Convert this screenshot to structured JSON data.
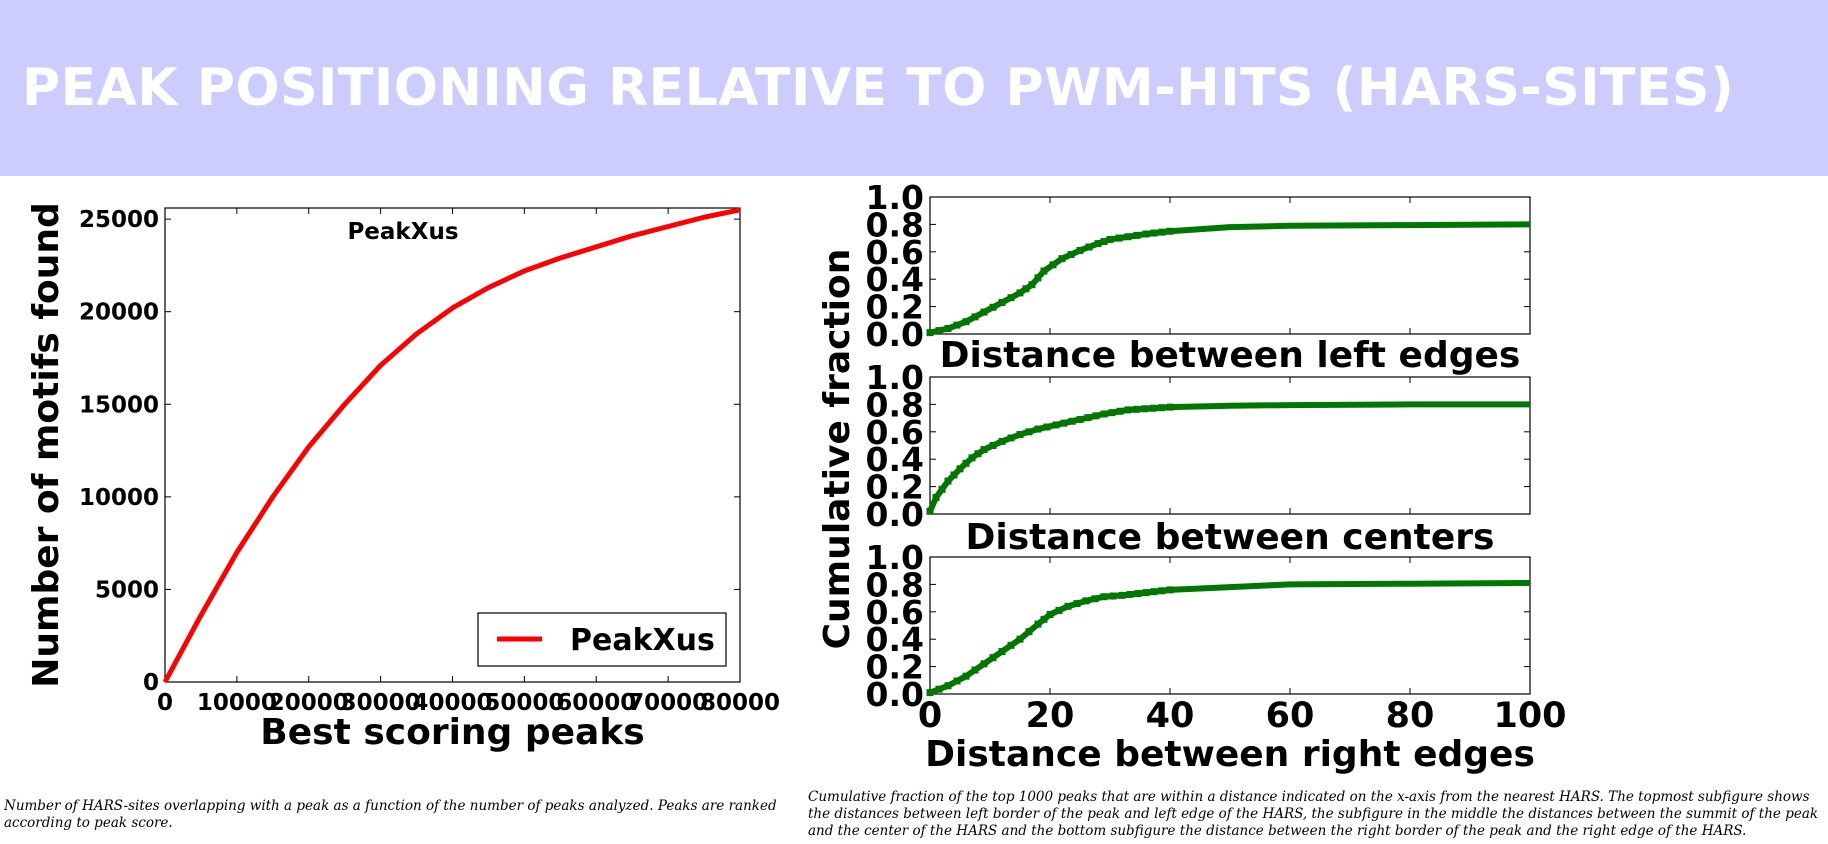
{
  "banner": {
    "title": "PEAK POSITIONING RELATIVE TO PWM-HITS (HARS-SITES)",
    "bg_color": "#ccccff"
  },
  "captions": {
    "left": "Number of HARS-sites overlapping with a peak as a function of the number of peaks analyzed. Peaks are ranked according to peak score.",
    "right": "Cumulative fraction of the top 1000 peaks that are within a distance indicated on the x-axis from the nearest HARS. The topmost subfigure shows the distances between left border of the peak and left edge of the HARS, the subfigure in the middle the distances between the summit of the peak and the center of the HARS and the bottom subfigure the distance between the right border of the peak and the right edge of the HARS."
  },
  "chart_data": [
    {
      "type": "line",
      "title": "PeakXus",
      "xlabel": "Best scoring peaks",
      "ylabel": "Number of motifs found",
      "xlim": [
        0,
        80000
      ],
      "ylim": [
        0,
        25600
      ],
      "xticks": [
        "0",
        "10000",
        "20000",
        "30000",
        "40000",
        "50000",
        "60000",
        "70000",
        "80000"
      ],
      "yticks": [
        "0",
        "5000",
        "10000",
        "15000",
        "20000",
        "25000"
      ],
      "legend": "lower-right",
      "series": [
        {
          "name": "PeakXus",
          "color": "#ff0000",
          "x": [
            0,
            5000,
            10000,
            15000,
            20000,
            25000,
            30000,
            35000,
            40000,
            45000,
            50000,
            55000,
            60000,
            65000,
            70000,
            75000,
            80000
          ],
          "y": [
            0,
            3600,
            7000,
            10000,
            12700,
            15000,
            17100,
            18800,
            20200,
            21300,
            22200,
            22900,
            23500,
            24100,
            24600,
            25100,
            25500
          ]
        }
      ]
    },
    {
      "type": "line",
      "xlabel": "Distance between left edges",
      "ylabel": "Cumulative fraction",
      "xlim": [
        0,
        100
      ],
      "ylim": [
        0,
        1.0
      ],
      "yticks": [
        "0.0",
        "0.2",
        "0.4",
        "0.6",
        "0.8",
        "1.0"
      ],
      "series": [
        {
          "color": "#007700",
          "x": [
            0,
            3,
            6,
            9,
            12,
            15,
            17,
            19,
            22,
            25,
            28,
            30,
            33,
            36,
            40,
            50,
            60,
            80,
            100
          ],
          "y": [
            0.01,
            0.04,
            0.09,
            0.16,
            0.23,
            0.3,
            0.36,
            0.46,
            0.55,
            0.61,
            0.66,
            0.69,
            0.71,
            0.73,
            0.75,
            0.78,
            0.79,
            0.795,
            0.8
          ]
        }
      ]
    },
    {
      "type": "line",
      "xlabel": "Distance between centers",
      "ylabel": "Cumulative fraction",
      "xlim": [
        0,
        100
      ],
      "ylim": [
        0,
        1.0
      ],
      "yticks": [
        "0.0",
        "0.2",
        "0.4",
        "0.6",
        "0.8",
        "1.0"
      ],
      "series": [
        {
          "color": "#007700",
          "x": [
            0,
            1,
            3,
            5,
            7,
            9,
            12,
            15,
            18,
            21,
            25,
            29,
            33,
            40,
            50,
            60,
            80,
            100
          ],
          "y": [
            0.02,
            0.12,
            0.24,
            0.33,
            0.41,
            0.47,
            0.53,
            0.58,
            0.62,
            0.65,
            0.69,
            0.73,
            0.76,
            0.78,
            0.79,
            0.795,
            0.8,
            0.8
          ]
        }
      ]
    },
    {
      "type": "line",
      "xlabel": "Distance between right edges",
      "ylabel": "Cumulative fraction",
      "xlim": [
        0,
        100
      ],
      "ylim": [
        0,
        1.0
      ],
      "xticks": [
        "0",
        "20",
        "40",
        "60",
        "80",
        "100"
      ],
      "yticks": [
        "0.0",
        "0.2",
        "0.4",
        "0.6",
        "0.8",
        "1.0"
      ],
      "series": [
        {
          "color": "#007700",
          "x": [
            0,
            3,
            6,
            9,
            12,
            15,
            18,
            20,
            23,
            26,
            29,
            32,
            36,
            40,
            50,
            60,
            80,
            100
          ],
          "y": [
            0.01,
            0.06,
            0.13,
            0.22,
            0.31,
            0.4,
            0.51,
            0.58,
            0.64,
            0.68,
            0.71,
            0.72,
            0.74,
            0.76,
            0.78,
            0.8,
            0.805,
            0.81
          ]
        }
      ]
    }
  ]
}
